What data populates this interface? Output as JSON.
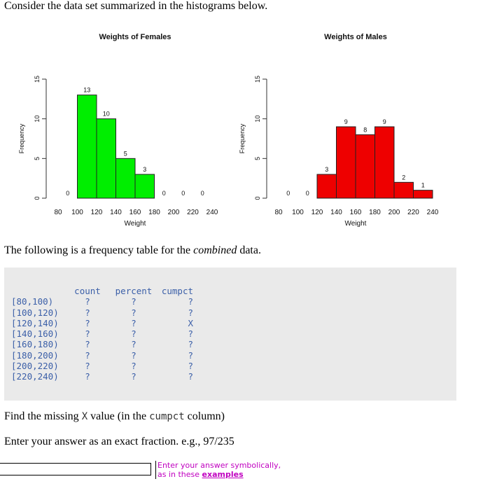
{
  "intro": "Consider the data set summarized in the histograms below.",
  "chart_data": [
    {
      "type": "bar",
      "title": "Weights of Females",
      "xlabel": "Weight",
      "ylabel": "Frequency",
      "color": "#00ee00",
      "bins": [
        80,
        100,
        120,
        140,
        160,
        180,
        200,
        220,
        240
      ],
      "xticks": [
        "80",
        "100",
        "120",
        "140",
        "160",
        "180",
        "200",
        "220",
        "240"
      ],
      "yticks": [
        "0",
        "5",
        "10",
        "15"
      ],
      "ylim": [
        0,
        15
      ],
      "values": [
        0,
        13,
        10,
        5,
        3,
        0,
        0,
        0
      ],
      "labels": [
        "0",
        "13",
        "10",
        "5",
        "3",
        "0",
        "0",
        "0"
      ]
    },
    {
      "type": "bar",
      "title": "Weights of Males",
      "xlabel": "Weight",
      "ylabel": "Frequency",
      "color": "#ee0000",
      "bins": [
        80,
        100,
        120,
        140,
        160,
        180,
        200,
        220,
        240
      ],
      "xticks": [
        "80",
        "100",
        "120",
        "140",
        "160",
        "180",
        "200",
        "220",
        "240"
      ],
      "yticks": [
        "0",
        "5",
        "10",
        "15"
      ],
      "ylim": [
        0,
        15
      ],
      "values": [
        0,
        0,
        3,
        9,
        8,
        9,
        2,
        1
      ],
      "labels": [
        "0",
        "0",
        "3",
        "9",
        "8",
        "9",
        "2",
        "1"
      ]
    }
  ],
  "para2": {
    "before": "The following is a frequency table for the ",
    "em": "combined",
    "after": " data."
  },
  "table": {
    "headers": [
      "count",
      "percent",
      "cumpct"
    ],
    "rows": [
      {
        "interval": "[80,100)",
        "count": "?",
        "percent": "?",
        "cumpct": "?"
      },
      {
        "interval": "[100,120)",
        "count": "?",
        "percent": "?",
        "cumpct": "?"
      },
      {
        "interval": "[120,140)",
        "count": "?",
        "percent": "?",
        "cumpct": "X"
      },
      {
        "interval": "[140,160)",
        "count": "?",
        "percent": "?",
        "cumpct": "?"
      },
      {
        "interval": "[160,180)",
        "count": "?",
        "percent": "?",
        "cumpct": "?"
      },
      {
        "interval": "[180,200)",
        "count": "?",
        "percent": "?",
        "cumpct": "?"
      },
      {
        "interval": "[200,220)",
        "count": "?",
        "percent": "?",
        "cumpct": "?"
      },
      {
        "interval": "[220,240)",
        "count": "?",
        "percent": "?",
        "cumpct": "?"
      }
    ]
  },
  "question": {
    "before": "Find the missing ",
    "x": "X",
    "middle": " value (in the ",
    "code": "cumpct",
    "after": " column)"
  },
  "instruction": "Enter your answer as an exact fraction. e.g., 97/235",
  "answer": {
    "value": "",
    "hint_line1": "Enter your answer symbolically,",
    "hint_line2_prefix": "as in these ",
    "hint_link": "examples"
  }
}
